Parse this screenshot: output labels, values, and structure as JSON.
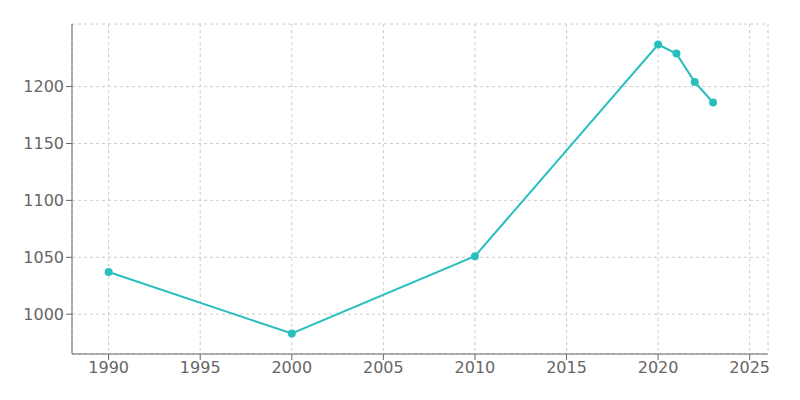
{
  "chart_data": {
    "type": "line",
    "x": [
      1990,
      2000,
      2010,
      2020,
      2021,
      2022,
      2023
    ],
    "values": [
      1037,
      983,
      1051,
      1237,
      1229,
      1204,
      1186
    ],
    "color": "#2abfbf",
    "marker": "o",
    "xlim": [
      1988,
      2026
    ],
    "ylim": [
      965,
      1255
    ],
    "xticks": [
      1990,
      1995,
      2000,
      2005,
      2010,
      2015,
      2020,
      2025
    ],
    "yticks": [
      1000,
      1050,
      1100,
      1150,
      1200
    ],
    "grid": true
  }
}
